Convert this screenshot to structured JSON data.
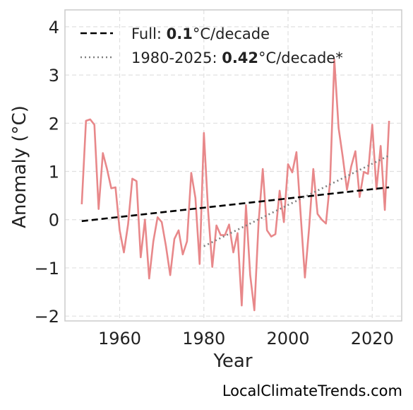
{
  "chart_data": {
    "type": "line",
    "xlabel": "Year",
    "ylabel": "Anomaly (°C)",
    "xlim": [
      1947,
      2027
    ],
    "ylim": [
      -2.1,
      4.35
    ],
    "x_ticks": [
      1960,
      1980,
      2000,
      2020
    ],
    "y_ticks": [
      -2,
      -1,
      0,
      1,
      2,
      3,
      4
    ],
    "y_tick_labels": [
      "−2",
      "−1",
      "0",
      "1",
      "2",
      "3",
      "4"
    ],
    "grid": true,
    "legend_position": "top-left",
    "series": [
      {
        "kind": "anomaly",
        "color": "#e8888a",
        "x": [
          1951,
          1952,
          1953,
          1954,
          1955,
          1956,
          1957,
          1958,
          1959,
          1960,
          1961,
          1962,
          1963,
          1964,
          1965,
          1966,
          1967,
          1968,
          1969,
          1970,
          1971,
          1972,
          1973,
          1974,
          1975,
          1976,
          1977,
          1978,
          1979,
          1980,
          1981,
          1982,
          1983,
          1984,
          1985,
          1986,
          1987,
          1988,
          1989,
          1990,
          1991,
          1992,
          1993,
          1994,
          1995,
          1996,
          1997,
          1998,
          1999,
          2000,
          2001,
          2002,
          2003,
          2004,
          2005,
          2006,
          2007,
          2008,
          2009,
          2010,
          2011,
          2012,
          2013,
          2014,
          2015,
          2016,
          2017,
          2018,
          2019,
          2020,
          2021,
          2022,
          2023,
          2024
        ],
        "y": [
          0.32,
          2.05,
          2.08,
          1.97,
          0.22,
          1.38,
          1.05,
          0.65,
          0.67,
          -0.22,
          -0.68,
          -0.1,
          0.85,
          0.8,
          -0.78,
          0.0,
          -1.22,
          -0.45,
          0.05,
          -0.05,
          -0.55,
          -1.15,
          -0.4,
          -0.22,
          -0.72,
          -0.45,
          0.97,
          0.45,
          -0.92,
          1.8,
          0.2,
          -0.98,
          -0.12,
          -0.32,
          -0.32,
          -0.1,
          -0.68,
          -0.28,
          -1.78,
          0.3,
          -1.15,
          -1.88,
          -0.05,
          1.05,
          -0.22,
          -0.35,
          -0.3,
          0.6,
          -0.05,
          1.15,
          0.98,
          1.4,
          0.1,
          -1.2,
          -0.18,
          1.05,
          0.12,
          0.0,
          -0.08,
          0.8,
          3.32,
          1.9,
          1.3,
          0.62,
          1.1,
          1.42,
          0.47,
          0.99,
          0.95,
          1.97,
          0.63,
          1.53,
          0.2,
          2.05
        ]
      },
      {
        "kind": "trend_full",
        "name": "Full",
        "slope_text": "0.1",
        "unit_text": "°C/decade",
        "color": "#000000",
        "x": [
          1951,
          2024
        ],
        "y": [
          -0.03,
          0.67
        ]
      },
      {
        "kind": "trend_recent",
        "name": "1980-2025",
        "slope_text": "0.42",
        "unit_text": "°C/decade*",
        "color": "#808080",
        "x": [
          1980,
          2024
        ],
        "y": [
          -0.55,
          1.33
        ]
      }
    ]
  },
  "legend": {
    "full_prefix": "Full: ",
    "full_value": "0.1",
    "full_unit": "°C/decade",
    "recent_prefix": "1980-2025: ",
    "recent_value": "0.42",
    "recent_unit": "°C/decade*"
  },
  "watermark": "LocalClimateTrends.com"
}
